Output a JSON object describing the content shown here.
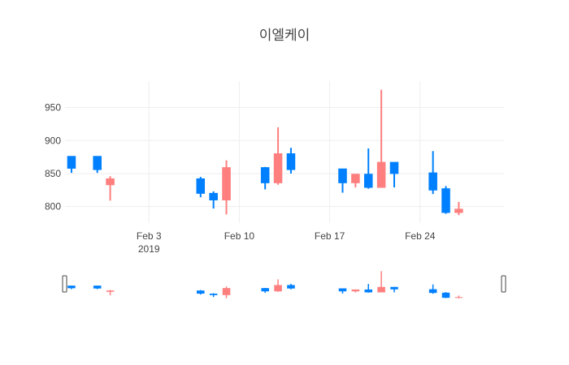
{
  "chart_data": {
    "type": "candlestick",
    "title": "이엘케이",
    "xlabel": "",
    "ylabel": "",
    "ylim": [
      775,
      990
    ],
    "xlim": [
      "2019-01-27T12:00",
      "2019-03-02T12:00"
    ],
    "y_ticks": [
      "800",
      "850",
      "900",
      "950"
    ],
    "x_ticks": [
      {
        "date": "2019-02-03",
        "label": "Feb 3",
        "sublabel": "2019"
      },
      {
        "date": "2019-02-10",
        "label": "Feb 10",
        "sublabel": ""
      },
      {
        "date": "2019-02-17",
        "label": "Feb 17",
        "sublabel": ""
      },
      {
        "date": "2019-02-24",
        "label": "Feb 24",
        "sublabel": ""
      }
    ],
    "range_slider": true,
    "grid": true,
    "colors": {
      "increasing": "#ff7f7f",
      "decreasing": "#0080ff",
      "grid": "#eeeeee",
      "text": "#444444"
    },
    "candles": [
      {
        "date": "2019-01-28",
        "open": 876,
        "high": 876,
        "low": 851,
        "close": 858
      },
      {
        "date": "2019-01-30",
        "open": 876,
        "high": 876,
        "low": 851,
        "close": 856
      },
      {
        "date": "2019-01-31",
        "open": 833,
        "high": 846,
        "low": 809,
        "close": 842
      },
      {
        "date": "2019-02-07",
        "open": 842,
        "high": 845,
        "low": 814,
        "close": 820
      },
      {
        "date": "2019-02-08",
        "open": 820,
        "high": 823,
        "low": 797,
        "close": 810
      },
      {
        "date": "2019-02-09",
        "open": 810,
        "high": 870,
        "low": 788,
        "close": 859
      },
      {
        "date": "2019-02-12",
        "open": 859,
        "high": 860,
        "low": 826,
        "close": 836
      },
      {
        "date": "2019-02-13",
        "open": 836,
        "high": 920,
        "low": 833,
        "close": 880
      },
      {
        "date": "2019-02-14",
        "open": 880,
        "high": 889,
        "low": 850,
        "close": 856
      },
      {
        "date": "2019-02-18",
        "open": 857,
        "high": 857,
        "low": 821,
        "close": 836
      },
      {
        "date": "2019-02-19",
        "open": 836,
        "high": 849,
        "low": 829,
        "close": 849
      },
      {
        "date": "2019-02-20",
        "open": 849,
        "high": 888,
        "low": 827,
        "close": 829
      },
      {
        "date": "2019-02-21",
        "open": 829,
        "high": 977,
        "low": 829,
        "close": 867
      },
      {
        "date": "2019-02-22",
        "open": 867,
        "high": 867,
        "low": 829,
        "close": 850
      },
      {
        "date": "2019-02-25",
        "open": 851,
        "high": 884,
        "low": 819,
        "close": 825
      },
      {
        "date": "2019-02-26",
        "open": 827,
        "high": 831,
        "low": 789,
        "close": 791
      },
      {
        "date": "2019-02-27",
        "open": 791,
        "high": 807,
        "low": 787,
        "close": 796
      }
    ]
  }
}
